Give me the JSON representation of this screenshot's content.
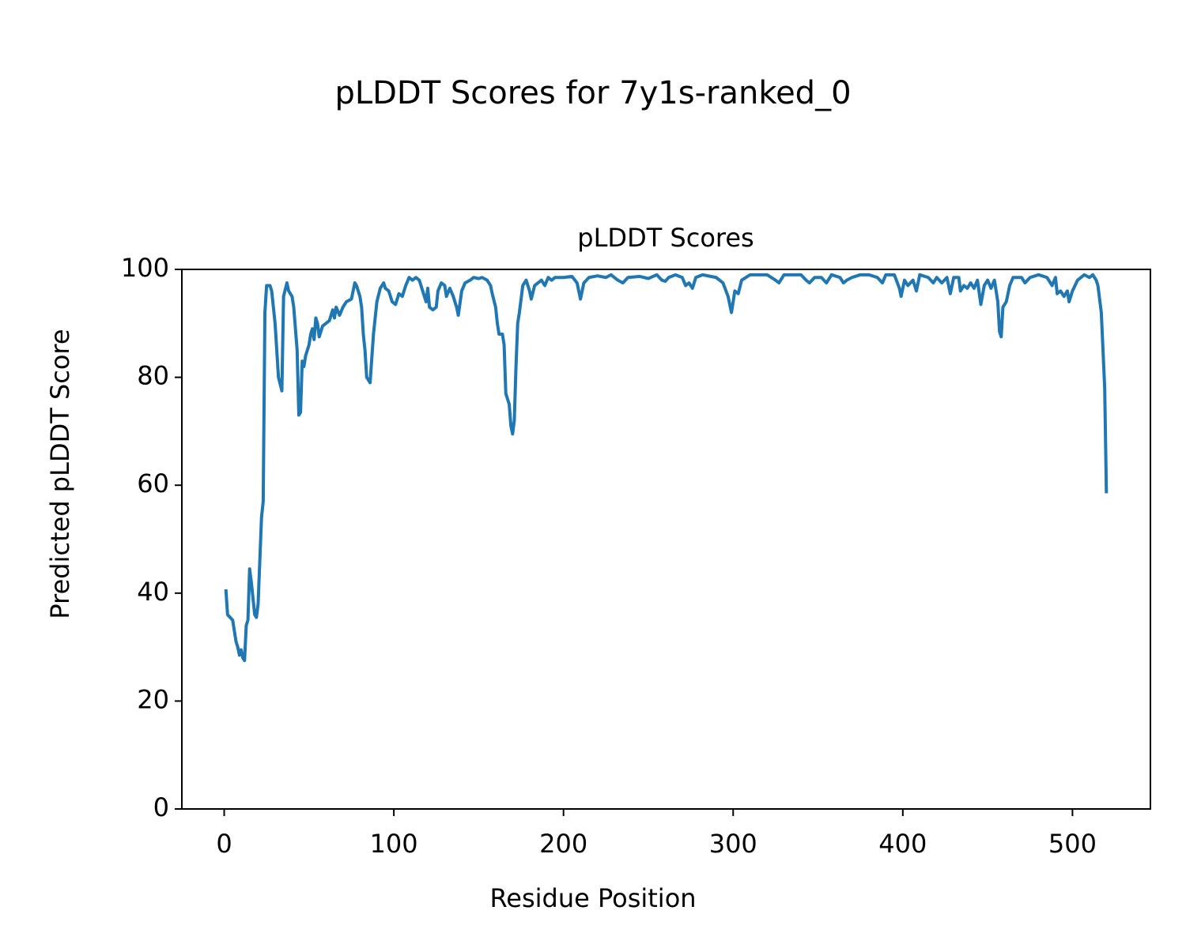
{
  "chart_data": {
    "type": "line",
    "title": "pLDDT Scores for 7y1s-ranked_0",
    "subtitle": "pLDDT Scores",
    "x_label": "Residue Position",
    "y_label": "Predicted pLDDT Score",
    "color": "#1f77b4",
    "x": [
      1,
      2,
      5,
      7,
      8,
      9,
      10,
      11,
      12,
      13,
      14,
      15,
      16,
      18,
      19,
      20,
      22,
      23,
      24,
      25,
      27,
      28,
      30,
      32,
      34,
      35,
      37,
      38,
      40,
      41,
      43,
      44,
      45,
      46,
      47,
      48,
      50,
      51,
      52,
      53,
      54,
      55,
      56,
      58,
      60,
      62,
      64,
      65,
      66,
      68,
      70,
      72,
      75,
      77,
      78,
      80,
      81,
      82,
      83,
      84,
      86,
      88,
      90,
      92,
      94,
      95,
      97,
      99,
      101,
      103,
      105,
      107,
      109,
      111,
      113,
      115,
      117,
      119,
      120,
      121,
      123,
      125,
      126,
      128,
      130,
      131,
      133,
      135,
      137,
      138,
      140,
      142,
      145,
      147,
      150,
      152,
      155,
      157,
      158,
      160,
      161,
      162,
      164,
      165,
      166,
      167,
      168,
      169,
      170,
      171,
      172,
      173,
      174,
      176,
      178,
      180,
      181,
      183,
      185,
      187,
      189,
      191,
      193,
      195,
      200,
      205,
      208,
      210,
      212,
      215,
      220,
      225,
      228,
      232,
      235,
      238,
      245,
      250,
      255,
      258,
      260,
      262,
      266,
      270,
      272,
      274,
      276,
      278,
      282,
      290,
      294,
      297,
      299,
      301,
      303,
      305,
      310,
      320,
      325,
      327,
      330,
      340,
      343,
      345,
      348,
      352,
      355,
      358,
      363,
      365,
      367,
      370,
      375,
      380,
      385,
      388,
      390,
      395,
      398,
      399,
      401,
      403,
      406,
      408,
      410,
      415,
      418,
      420,
      423,
      426,
      428,
      430,
      433,
      434,
      436,
      438,
      440,
      442,
      444,
      446,
      448,
      450,
      452,
      454,
      456,
      457,
      458,
      459,
      461,
      463,
      465,
      470,
      472,
      475,
      480,
      485,
      488,
      490,
      491,
      493,
      495,
      497,
      498,
      500,
      503,
      507,
      510,
      512,
      514,
      515,
      517,
      519,
      520
    ],
    "values": [
      40.7,
      36,
      35,
      31,
      30,
      28.5,
      29.5,
      28,
      27.5,
      34,
      35,
      44.5,
      42,
      36,
      35.5,
      38,
      54,
      57,
      92,
      97,
      97,
      96,
      90,
      80,
      77.5,
      95,
      97.5,
      96,
      95,
      93,
      85,
      73,
      73.5,
      83,
      82,
      84,
      86,
      88,
      89,
      87,
      91,
      90,
      87.5,
      89.5,
      90,
      90.5,
      92.5,
      91,
      93,
      91.5,
      93,
      94,
      94.5,
      97.5,
      97,
      95,
      93,
      88,
      85,
      80,
      79,
      88,
      94,
      96.5,
      97.5,
      96.5,
      96,
      94,
      93.5,
      95.5,
      95,
      97,
      98.5,
      98,
      98.5,
      98,
      96,
      94,
      96.5,
      93,
      92.5,
      93,
      96,
      97.5,
      97,
      95,
      96.5,
      95,
      93,
      91.5,
      96,
      97.5,
      98,
      98.5,
      98.3,
      98.5,
      98,
      97,
      95.5,
      93,
      90,
      88,
      88,
      86,
      77,
      76,
      75,
      71,
      69.5,
      72,
      82,
      90,
      92,
      97,
      98,
      96,
      94.5,
      97,
      97.5,
      98,
      97,
      98.5,
      98,
      98.5,
      98.5,
      98.7,
      97.5,
      94.5,
      97.5,
      98.5,
      98.8,
      98.5,
      99,
      98,
      97.5,
      98.5,
      98.7,
      98.3,
      99,
      98,
      97.8,
      98.5,
      99,
      98.5,
      97,
      97.5,
      96.5,
      98.5,
      99,
      98.5,
      97.5,
      95,
      92,
      96,
      95.5,
      98,
      99,
      99,
      98,
      97.5,
      99,
      99,
      98,
      97.5,
      98.5,
      98.5,
      97.5,
      99,
      98.5,
      97.5,
      98,
      98.5,
      99,
      99,
      98.5,
      97.5,
      99,
      99,
      96.5,
      95,
      98,
      97,
      98,
      96,
      99,
      98.5,
      97.5,
      98.5,
      97.5,
      98.5,
      95.5,
      98.5,
      98.5,
      96,
      97,
      96.5,
      97.5,
      96.5,
      98,
      93.5,
      97,
      98,
      96.5,
      98,
      94,
      88.5,
      87.5,
      93,
      94,
      97,
      98.5,
      98.5,
      97.5,
      98.5,
      99,
      98.5,
      97,
      98.5,
      95.5,
      96,
      95,
      96,
      94,
      96,
      98,
      99,
      98.5,
      99,
      98,
      97,
      92,
      78,
      58.5
    ],
    "xlim": [
      -24.95,
      545.95
    ],
    "ylim": [
      0,
      100
    ],
    "xticks": [
      0,
      100,
      200,
      300,
      400,
      500
    ],
    "yticks": [
      0,
      20,
      40,
      60,
      80,
      100
    ]
  }
}
